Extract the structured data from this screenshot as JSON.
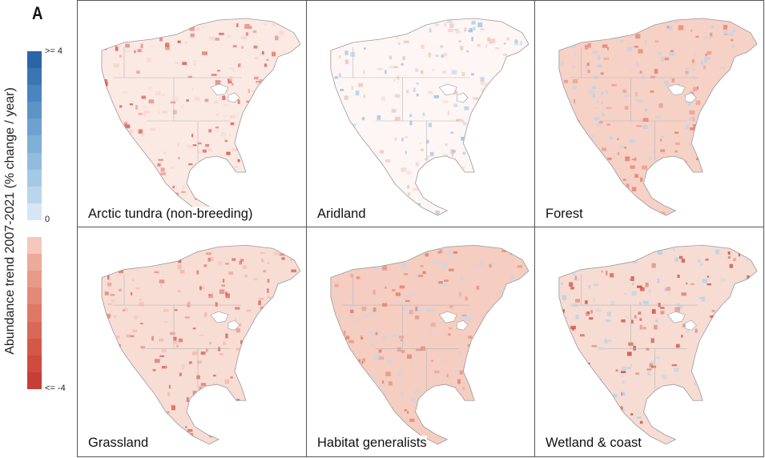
{
  "figure": {
    "panel_letter": "A",
    "y_axis_label": "Abundance trend 2007-2021 (% change / year)"
  },
  "legend": {
    "tick_top": ">= 4",
    "tick_mid": "0",
    "tick_bottom": "<= -4",
    "colors": [
      "#2b65a8",
      "#3a75b4",
      "#4b84bf",
      "#5d93c8",
      "#6fa1d0",
      "#80afd7",
      "#92bcde",
      "#a4c9e5",
      "#b9d6ec",
      "#d5e6f4",
      "#ffffff",
      "#f4c8bc",
      "#ecaa9b",
      "#e8998a",
      "#e48979",
      "#df7867",
      "#da6857",
      "#d45849",
      "#ce4b3e",
      "#c63e35"
    ]
  },
  "panels": [
    {
      "id": "arctic",
      "label": "Arctic tundra (non-breeding)",
      "fill": "#fbe9e4",
      "hot": "#d9564a",
      "cool": "#f6d4cb"
    },
    {
      "id": "aridland",
      "label": "Aridland",
      "fill": "#fdf6f4",
      "hot": "#f2c3b8",
      "cool": "#9cc3e2"
    },
    {
      "id": "forest",
      "label": "Forest",
      "fill": "#f6d1c6",
      "hot": "#e5806e",
      "cool": "#b8d4ec"
    },
    {
      "id": "grassland",
      "label": "Grassland",
      "fill": "#f8ddd5",
      "hot": "#d9675a",
      "cool": "#f2b9aa"
    },
    {
      "id": "generalists",
      "label": "Habitat generalists",
      "fill": "#f5cdc1",
      "hot": "#e07a67",
      "cool": "#c1d9ee"
    },
    {
      "id": "wetland",
      "label": "Wetland & coast",
      "fill": "#f7dcd3",
      "hot": "#d24f43",
      "cool": "#b5d1ea"
    }
  ]
}
